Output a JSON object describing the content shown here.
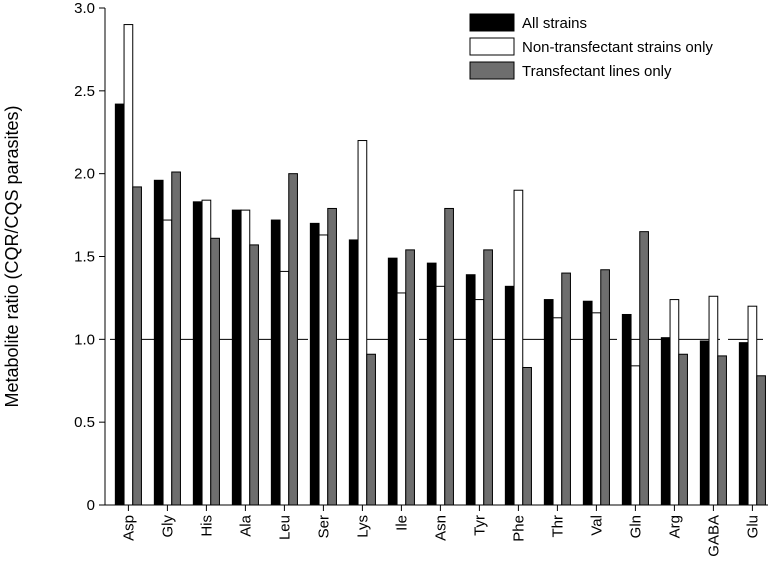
{
  "chart_data": {
    "type": "bar",
    "ylabel": "Metabolite ratio (CQR/CQS parasites)",
    "xlabel": "",
    "ylim": [
      0,
      3.0
    ],
    "yticks": [
      "0",
      "0.5",
      "1.0",
      "1.5",
      "2.0",
      "2.5",
      "3.0"
    ],
    "reference_line": 1.0,
    "legend_position": "top-right",
    "categories": [
      "Asp",
      "Gly",
      "His",
      "Ala",
      "Leu",
      "Ser",
      "Lys",
      "Ile",
      "Asn",
      "Tyr",
      "Phe",
      "Thr",
      "Val",
      "Gln",
      "Arg",
      "GABA",
      "Glu"
    ],
    "series": [
      {
        "name": "All strains",
        "color": "#000000",
        "values": [
          2.42,
          1.96,
          1.83,
          1.78,
          1.72,
          1.7,
          1.6,
          1.49,
          1.46,
          1.39,
          1.32,
          1.24,
          1.23,
          1.15,
          1.01,
          0.99,
          0.98
        ]
      },
      {
        "name": "Non-transfectant strains only",
        "color": "#ffffff",
        "values": [
          2.9,
          1.72,
          1.84,
          1.78,
          1.41,
          1.63,
          2.2,
          1.28,
          1.32,
          1.24,
          1.9,
          1.13,
          1.16,
          0.84,
          1.24,
          1.26,
          1.2
        ]
      },
      {
        "name": "Transfectant lines only",
        "color": "#6e6e6e",
        "values": [
          1.92,
          2.01,
          1.61,
          1.57,
          2.0,
          1.79,
          0.91,
          1.54,
          1.79,
          1.54,
          0.83,
          1.4,
          1.42,
          1.65,
          0.91,
          0.9,
          0.78
        ]
      }
    ]
  }
}
